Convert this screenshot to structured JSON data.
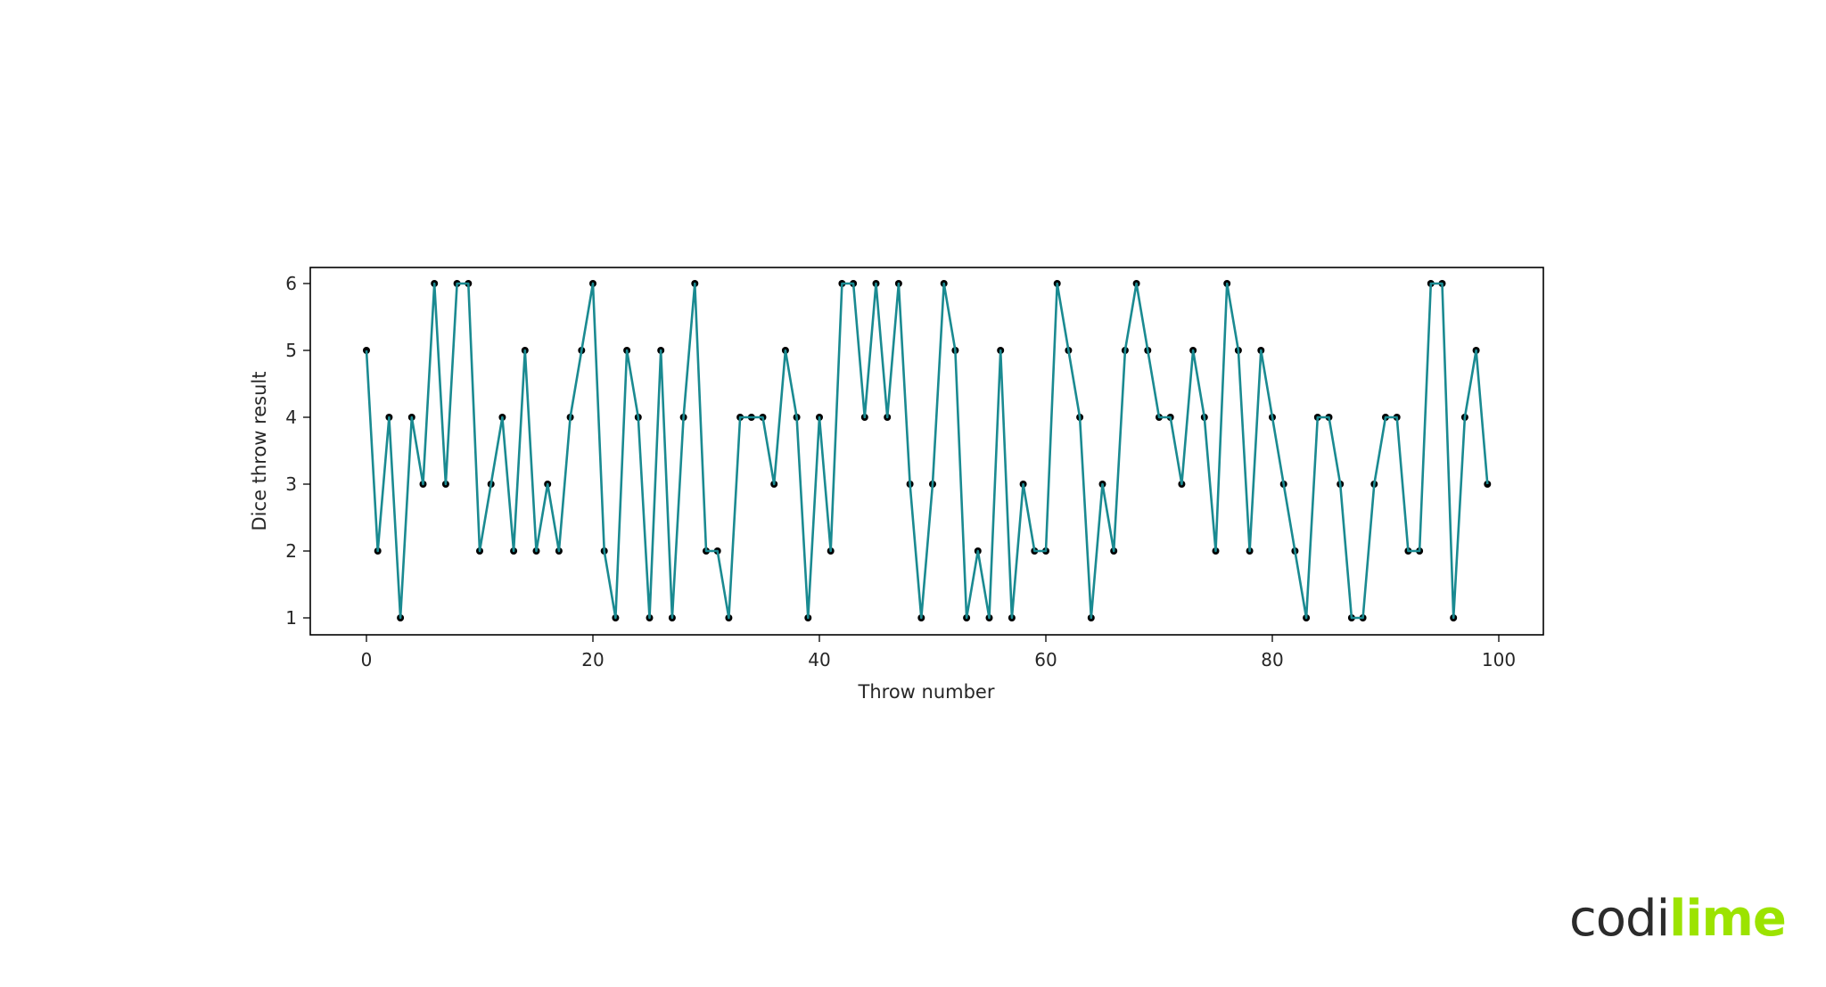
{
  "chart_data": {
    "type": "line",
    "title": "",
    "xlabel": "Throw number",
    "ylabel": "Dice throw result",
    "xlim": [
      -5,
      104
    ],
    "ylim": [
      0.75,
      6.25
    ],
    "x_ticks": [
      0,
      20,
      40,
      60,
      80,
      100
    ],
    "y_ticks": [
      1,
      2,
      3,
      4,
      5,
      6
    ],
    "grid": false,
    "legend": null,
    "line_color": "#1a8a91",
    "marker_color": "#000000",
    "marker": "circle",
    "x": [
      0,
      1,
      2,
      3,
      4,
      5,
      6,
      7,
      8,
      9,
      10,
      11,
      12,
      13,
      14,
      15,
      16,
      17,
      18,
      19,
      20,
      21,
      22,
      23,
      24,
      25,
      26,
      27,
      28,
      29,
      30,
      31,
      32,
      33,
      34,
      35,
      36,
      37,
      38,
      39,
      40,
      41,
      42,
      43,
      44,
      45,
      46,
      47,
      48,
      49,
      50,
      51,
      52,
      53,
      54,
      55,
      56,
      57,
      58,
      59,
      60,
      61,
      62,
      63,
      64,
      65,
      66,
      67,
      68,
      69,
      70,
      71,
      72,
      73,
      74,
      75,
      76,
      77,
      78,
      79,
      80,
      81,
      82,
      83,
      84,
      85,
      86,
      87,
      88,
      89,
      90,
      91,
      92,
      93,
      94,
      95,
      96,
      97,
      98,
      99
    ],
    "values": [
      5,
      2,
      4,
      1,
      4,
      3,
      6,
      3,
      6,
      6,
      2,
      3,
      4,
      2,
      5,
      2,
      3,
      2,
      4,
      5,
      6,
      2,
      1,
      5,
      4,
      1,
      5,
      1,
      4,
      6,
      2,
      2,
      1,
      4,
      4,
      4,
      3,
      5,
      4,
      1,
      4,
      2,
      6,
      6,
      4,
      6,
      4,
      6,
      3,
      1,
      3,
      6,
      5,
      1,
      2,
      1,
      5,
      1,
      3,
      2,
      2,
      6,
      5,
      4,
      1,
      3,
      2,
      5,
      6,
      5,
      4,
      4,
      3,
      5,
      4,
      2,
      6,
      5,
      2,
      5,
      4,
      3,
      2,
      1,
      4,
      4,
      3,
      1,
      1,
      3,
      4,
      4,
      2,
      2,
      6,
      6,
      1,
      4,
      5,
      3
    ]
  },
  "logo": {
    "part1": "codi",
    "part2": "lime"
  }
}
